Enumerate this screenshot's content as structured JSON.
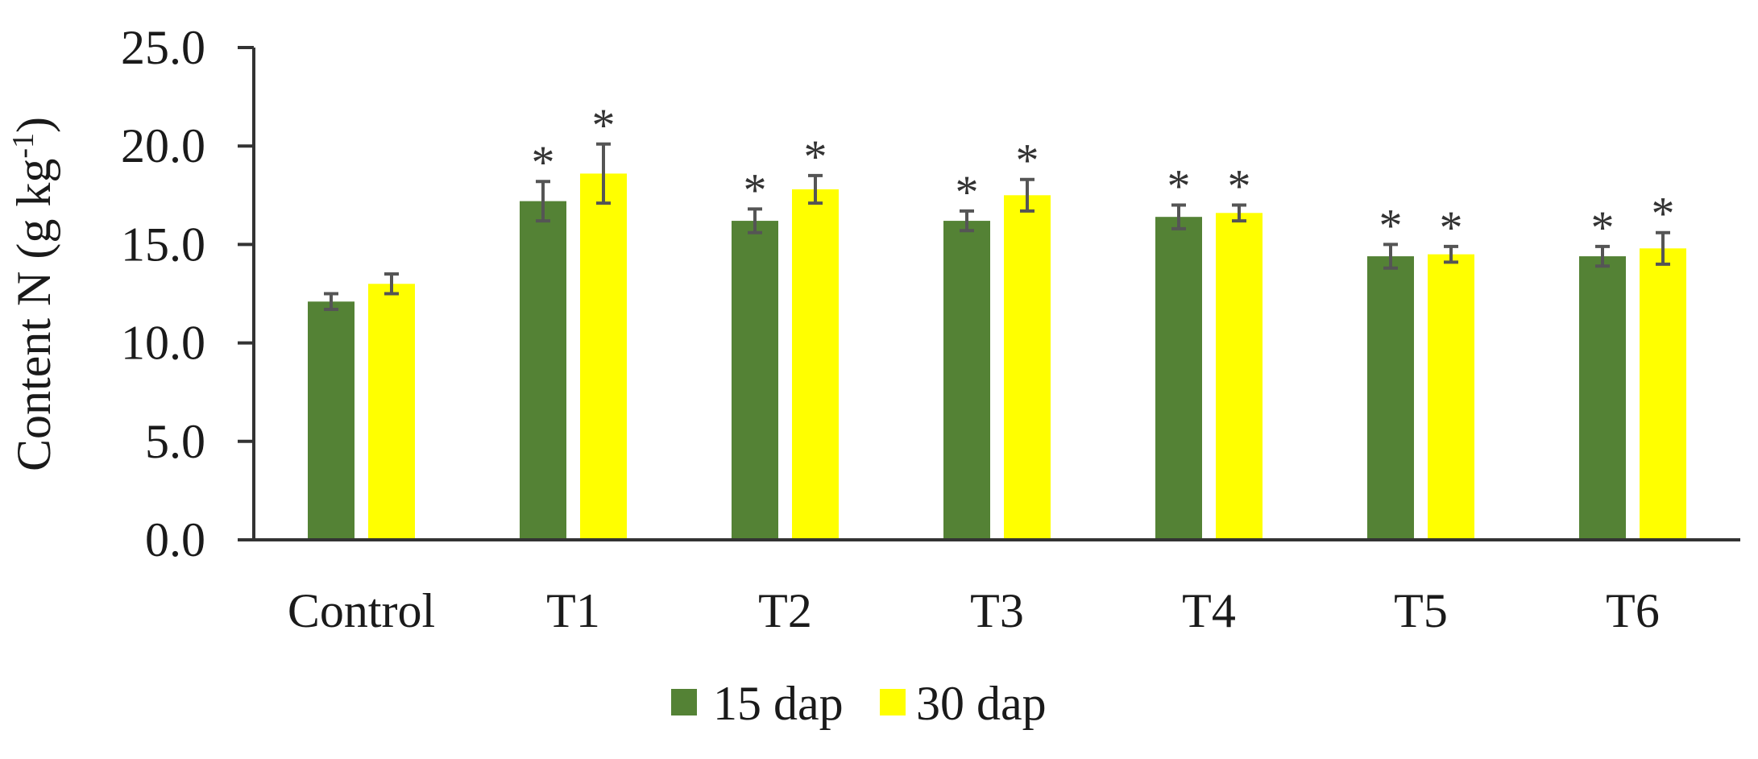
{
  "chart_data": {
    "type": "bar",
    "title": "",
    "xlabel": "",
    "ylabel": "Content N (g kg",
    "ylabel_superscript": "-1",
    "ylabel_close": ")",
    "ylim": [
      0,
      25
    ],
    "yticks": [
      "0.0",
      "5.0",
      "10.0",
      "15.0",
      "20.0",
      "25.0"
    ],
    "ytick_values": [
      0,
      5,
      10,
      15,
      20,
      25
    ],
    "grid": false,
    "legend_position": "bottom",
    "categories": [
      "Control",
      "T1",
      "T2",
      "T3",
      "T4",
      "T5",
      "T6"
    ],
    "series": [
      {
        "name": "15 dap",
        "color": "#548235",
        "values": [
          12.1,
          17.2,
          16.2,
          16.2,
          16.4,
          14.4,
          14.4
        ],
        "errors": [
          0.4,
          1.0,
          0.6,
          0.5,
          0.6,
          0.6,
          0.5
        ],
        "significant": [
          false,
          true,
          true,
          true,
          true,
          true,
          true
        ]
      },
      {
        "name": "30 dap",
        "color": "#FFFF00",
        "values": [
          13.0,
          18.6,
          17.8,
          17.5,
          16.6,
          14.5,
          14.8
        ],
        "errors": [
          0.5,
          1.5,
          0.7,
          0.8,
          0.4,
          0.4,
          0.8
        ],
        "significant": [
          false,
          true,
          true,
          true,
          true,
          true,
          true
        ]
      }
    ],
    "annotation_symbol": "*"
  }
}
